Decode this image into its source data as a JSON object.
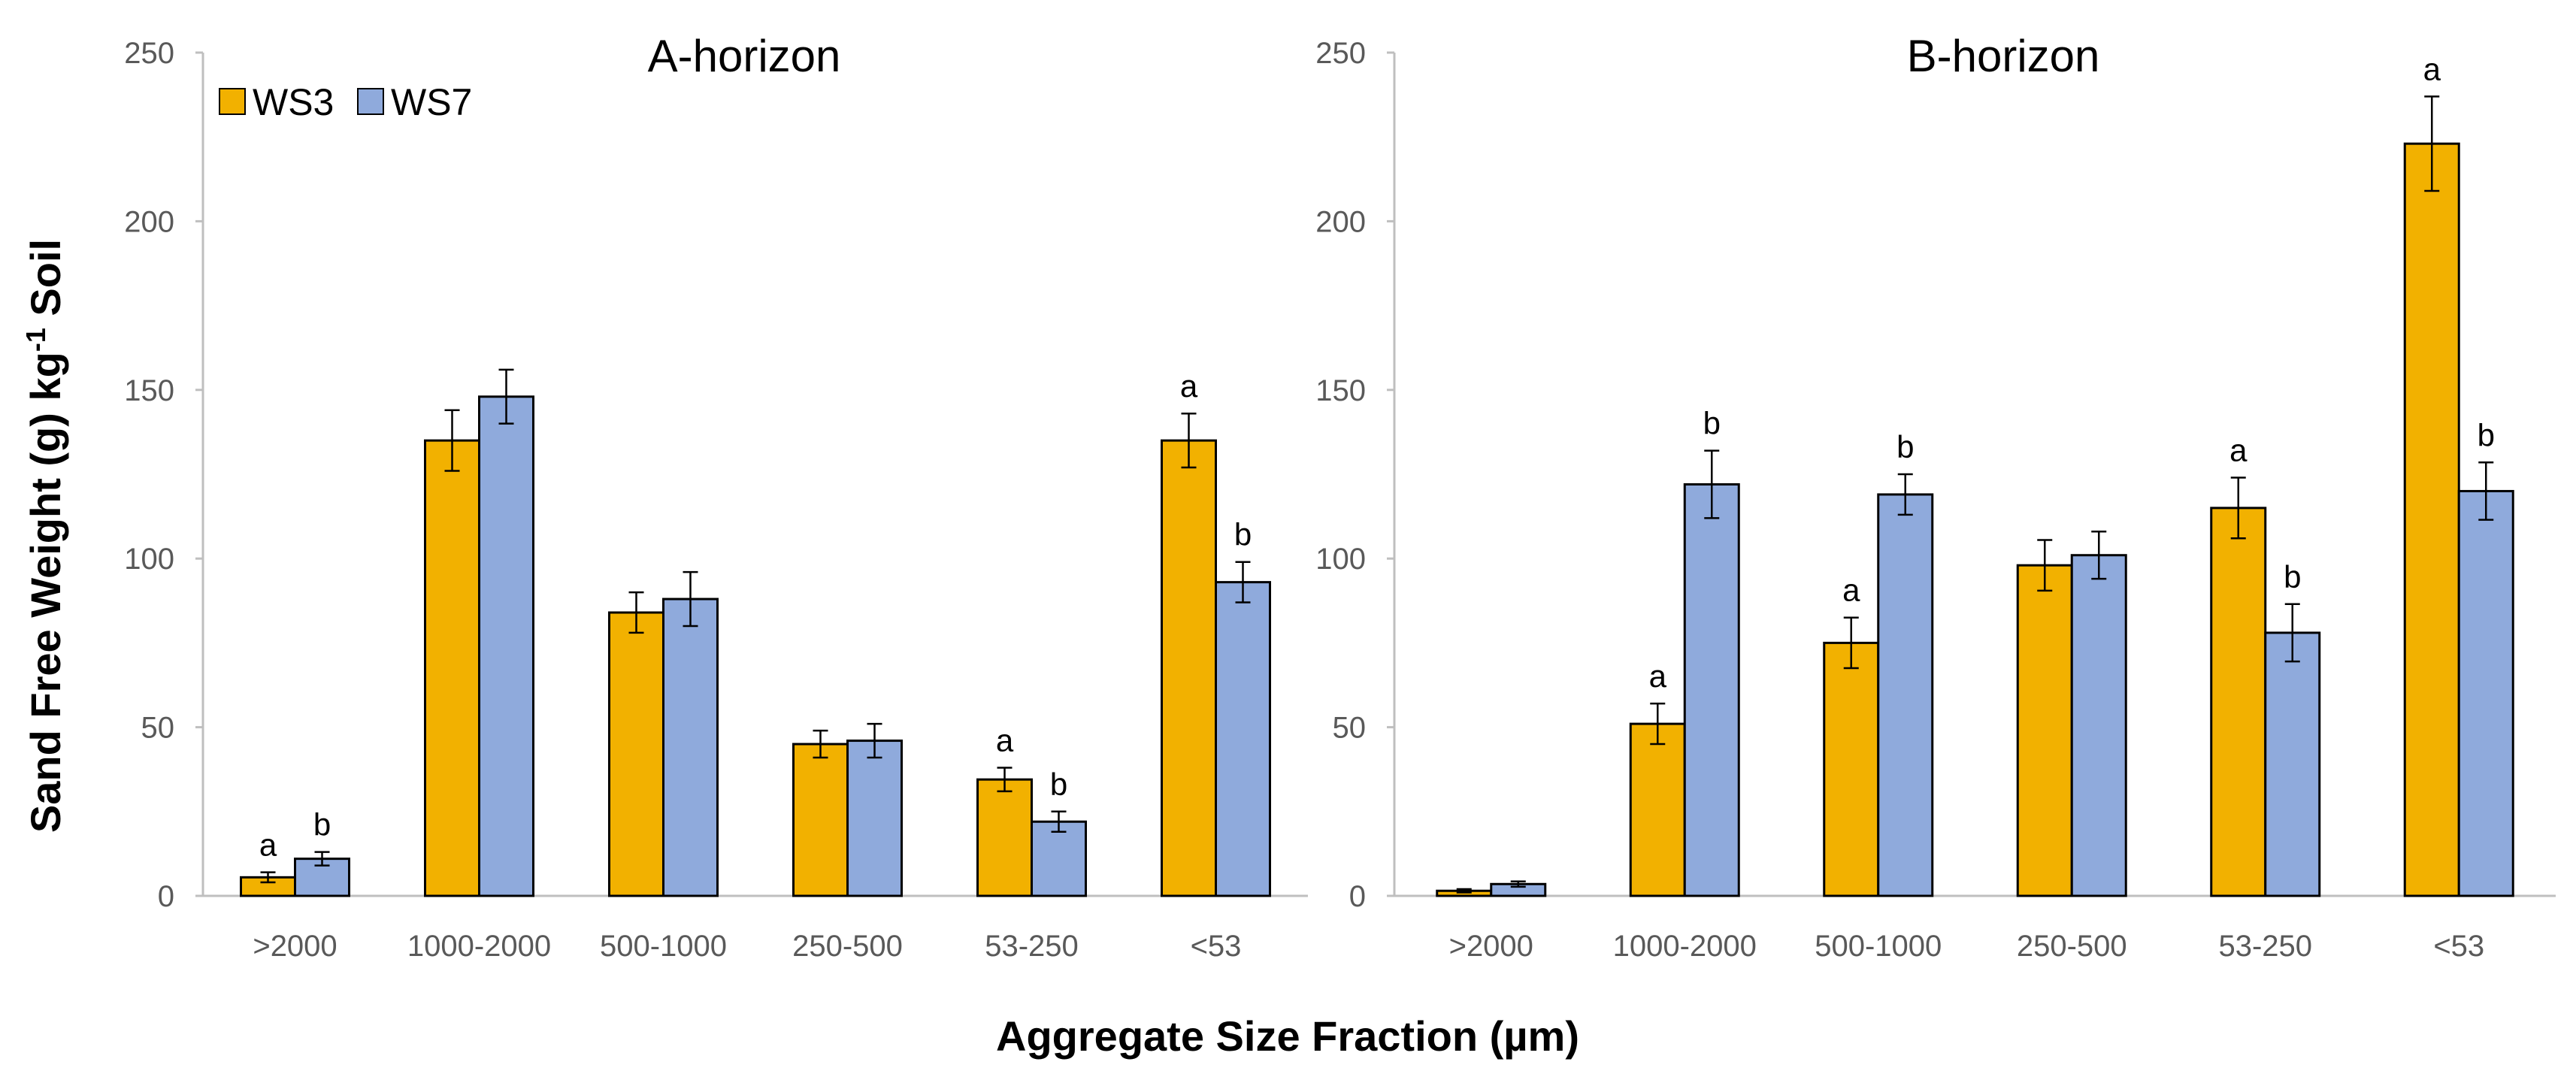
{
  "y_axis_title": {
    "main": "Sand Free Weight (g) kg",
    "sup": "-1",
    "tail": " Soil"
  },
  "x_axis_title": "Aggregate Size Fraction (µm)",
  "colors": {
    "WS3": "#F2B100",
    "WS7": "#8FAADC",
    "axis": "#BFBFBF",
    "outline": "#000000"
  },
  "legend": [
    {
      "name": "WS3"
    },
    {
      "name": "WS7"
    }
  ],
  "chart_data": [
    {
      "type": "bar",
      "title": "A-horizon",
      "categories": [
        ">2000",
        "1000-2000",
        "500-1000",
        "250-500",
        "53-250",
        "<53"
      ],
      "ylim": [
        0,
        250
      ],
      "yticks": [
        0,
        50,
        100,
        150,
        200,
        250
      ],
      "series": [
        {
          "name": "WS3",
          "values": [
            5.5,
            135,
            84,
            45,
            34.5,
            135
          ],
          "errors": [
            1.5,
            9,
            6,
            4,
            3.5,
            8
          ],
          "letters": [
            "a",
            "",
            "",
            "",
            "a",
            "a"
          ]
        },
        {
          "name": "WS7",
          "values": [
            11,
            148,
            88,
            46,
            22,
            93
          ],
          "errors": [
            2,
            8,
            8,
            5,
            3,
            6
          ],
          "letters": [
            "b",
            "",
            "",
            "",
            "b",
            "b"
          ]
        }
      ]
    },
    {
      "type": "bar",
      "title": "B-horizon",
      "categories": [
        ">2000",
        "1000-2000",
        "500-1000",
        "250-500",
        "53-250",
        "<53"
      ],
      "ylim": [
        0,
        250
      ],
      "yticks": [
        0,
        50,
        100,
        150,
        200,
        250
      ],
      "series": [
        {
          "name": "WS3",
          "values": [
            1.5,
            51,
            75,
            98,
            115,
            223
          ],
          "errors": [
            0.5,
            6,
            7.5,
            7.5,
            9,
            14
          ],
          "letters": [
            "",
            "a",
            "a",
            "",
            "a",
            "a"
          ]
        },
        {
          "name": "WS7",
          "values": [
            3.5,
            122,
            119,
            101,
            78,
            120
          ],
          "errors": [
            0.8,
            10,
            6,
            7,
            8.5,
            8.5
          ],
          "letters": [
            "",
            "b",
            "b",
            "",
            "b",
            "b"
          ]
        }
      ]
    }
  ]
}
